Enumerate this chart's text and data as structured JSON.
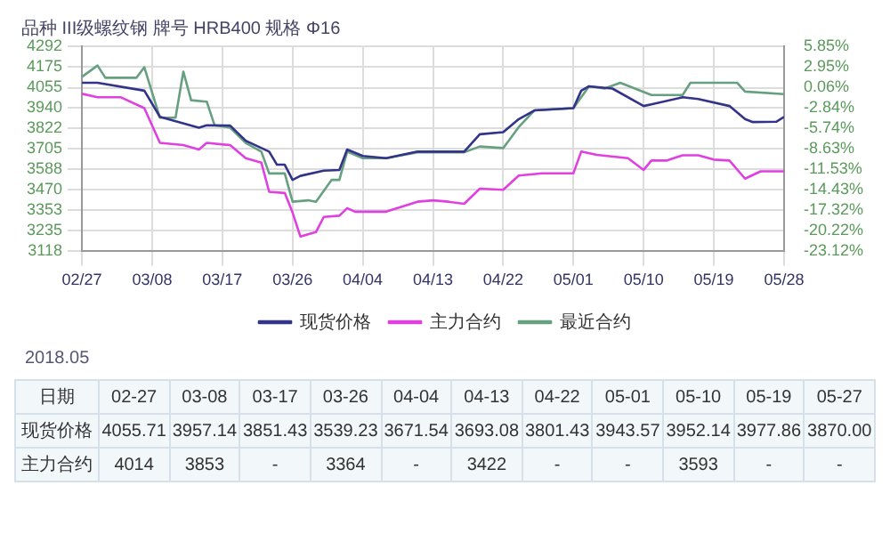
{
  "chart_data": [
    {
      "type": "line",
      "title": "品种 III级螺纹钢 牌号 HRB400 规格 Φ16",
      "annotations": [
        "2018.05"
      ],
      "legend": "bottom",
      "grid": true,
      "marker": "none",
      "line_style": "solid",
      "xlim": [
        "--02-27",
        "--05-28"
      ],
      "xticks": [
        {
          "value": "--02-27",
          "label": "02/27"
        },
        {
          "value": "--03-08",
          "label": "03/08"
        },
        {
          "value": "--03-17",
          "label": "03/17"
        },
        {
          "value": "--03-26",
          "label": "03/26"
        },
        {
          "value": "--04-04",
          "label": "04/04"
        },
        {
          "value": "--04-13",
          "label": "04/13"
        },
        {
          "value": "--04-22",
          "label": "04/22"
        },
        {
          "value": "--05-01",
          "label": "05/01"
        },
        {
          "value": "--05-10",
          "label": "05/10"
        },
        {
          "value": "--05-19",
          "label": "05/19"
        },
        {
          "value": "--05-28",
          "label": "05/28"
        }
      ],
      "ylim": [
        3118,
        4292
      ],
      "yticks": [
        3118,
        3235,
        3353,
        3470,
        3588,
        3705,
        3822,
        3940,
        4055,
        4175,
        4292
      ],
      "y2lim": [
        -23.12,
        5.85
      ],
      "y2ticks": [
        {
          "value": -23.12,
          "label": "-23.12%"
        },
        {
          "value": -20.22,
          "label": "-20.22%"
        },
        {
          "value": -17.32,
          "label": "-17.32%"
        },
        {
          "value": -14.43,
          "label": "-14.43%"
        },
        {
          "value": -11.53,
          "label": "-11.53%"
        },
        {
          "value": -8.63,
          "label": "-8.63%"
        },
        {
          "value": -5.74,
          "label": "-5.74%"
        },
        {
          "value": -2.84,
          "label": "-2.84%"
        },
        {
          "value": 0.06,
          "label": "0.06%"
        },
        {
          "value": 2.95,
          "label": "2.95%"
        },
        {
          "value": 5.85,
          "label": "5.85%"
        }
      ],
      "series": [
        {
          "name": "现货价格",
          "color": "#33338a",
          "x": [
            "--02-27",
            "--03-01",
            "--03-07",
            "--03-09",
            "--03-10",
            "--03-14",
            "--03-15",
            "--03-18",
            "--03-20",
            "--03-23",
            "--03-24",
            "--03-25",
            "--03-26",
            "--03-27",
            "--03-30",
            "--04-01",
            "--04-02",
            "--04-04",
            "--04-07",
            "--04-11",
            "--04-17",
            "--04-19",
            "--04-22",
            "--04-24",
            "--04-26",
            "--05-01",
            "--05-02",
            "--05-03",
            "--05-06",
            "--05-10",
            "--05-11",
            "--05-15",
            "--05-17",
            "--05-21",
            "--05-23",
            "--05-24",
            "--05-27",
            "--05-28"
          ],
          "values": [
            4083,
            4083,
            4038,
            3888,
            3876,
            3826,
            3840,
            3838,
            3751,
            3689,
            3614,
            3614,
            3527,
            3550,
            3580,
            3584,
            3701,
            3664,
            3651,
            3689,
            3689,
            3788,
            3800,
            3875,
            3925,
            3938,
            4038,
            4063,
            4050,
            3950,
            3960,
            4000,
            3990,
            3950,
            3875,
            3858,
            3860,
            3888
          ]
        },
        {
          "name": "主力合约",
          "color": "#e040e0",
          "x": [
            "--02-27",
            "--03-01",
            "--03-04",
            "--03-07",
            "--03-09",
            "--03-12",
            "--03-14",
            "--03-15",
            "--03-18",
            "--03-20",
            "--03-22",
            "--03-23",
            "--03-25",
            "--03-26",
            "--03-27",
            "--03-29",
            "--03-30",
            "--04-01",
            "--04-02",
            "--04-03",
            "--04-07",
            "--04-11",
            "--04-13",
            "--04-15",
            "--04-17",
            "--04-19",
            "--04-22",
            "--04-24",
            "--04-27",
            "--05-01",
            "--05-02",
            "--05-04",
            "--05-08",
            "--05-10",
            "--05-11",
            "--05-13",
            "--05-15",
            "--05-17",
            "--05-19",
            "--05-21",
            "--05-23",
            "--05-25",
            "--05-28"
          ],
          "values": [
            4020,
            4000,
            4000,
            3938,
            3739,
            3726,
            3701,
            3739,
            3726,
            3651,
            3626,
            3459,
            3452,
            3340,
            3203,
            3228,
            3315,
            3322,
            3365,
            3345,
            3345,
            3402,
            3410,
            3402,
            3390,
            3477,
            3470,
            3552,
            3565,
            3565,
            3689,
            3670,
            3651,
            3584,
            3638,
            3638,
            3668,
            3668,
            3643,
            3638,
            3534,
            3576,
            3576
          ]
        },
        {
          "name": "最近合约",
          "color": "#66a080",
          "x": [
            "--02-27",
            "--03-01",
            "--03-02",
            "--03-06",
            "--03-07",
            "--03-09",
            "--03-11",
            "--03-12",
            "--03-13",
            "--03-15",
            "--03-16",
            "--03-18",
            "--03-20",
            "--03-22",
            "--03-23",
            "--03-25",
            "--03-26",
            "--03-28",
            "--03-29",
            "--03-31",
            "--04-01",
            "--04-02",
            "--04-04",
            "--04-07",
            "--04-11",
            "--04-17",
            "--04-19",
            "--04-22",
            "--04-24",
            "--04-26",
            "--05-01",
            "--05-03",
            "--05-05",
            "--05-07",
            "--05-11",
            "--05-15",
            "--05-16",
            "--05-22",
            "--05-23",
            "--05-28"
          ],
          "values": [
            4117,
            4182,
            4112,
            4112,
            4172,
            3883,
            3883,
            4147,
            3983,
            3975,
            3840,
            3826,
            3739,
            3689,
            3564,
            3564,
            3402,
            3410,
            3402,
            3527,
            3527,
            3689,
            3651,
            3651,
            3685,
            3685,
            3718,
            3709,
            3830,
            3925,
            3938,
            4063,
            4050,
            4083,
            4013,
            4013,
            4083,
            4083,
            4033,
            4018
          ]
        }
      ]
    },
    {
      "type": "other",
      "xlabel": "日期",
      "categories": [
        "02-27",
        "03-08",
        "03-17",
        "03-26",
        "04-04",
        "04-13",
        "04-22",
        "05-01",
        "05-10",
        "05-19",
        "05-27"
      ],
      "series": [
        {
          "name": "现货价格",
          "values": [
            4055.71,
            3957.14,
            3851.43,
            3539.23,
            3671.54,
            3693.08,
            3801.43,
            3943.57,
            3952.14,
            3977.86,
            3870
          ],
          "value_labels": [
            "4055.71",
            "3957.14",
            "3851.43",
            "3539.23",
            "3671.54",
            "3693.08",
            "3801.43",
            "3943.57",
            "3952.14",
            "3977.86",
            "3870.00"
          ]
        },
        {
          "name": "主力合约",
          "values": [
            4014,
            3853,
            null,
            3364,
            null,
            3422,
            null,
            null,
            3593,
            null,
            null
          ],
          "value_labels": [
            "4014",
            "3853",
            "-",
            "3364",
            "-",
            "3422",
            "-",
            "-",
            "3593",
            "-",
            "-"
          ]
        }
      ]
    }
  ]
}
